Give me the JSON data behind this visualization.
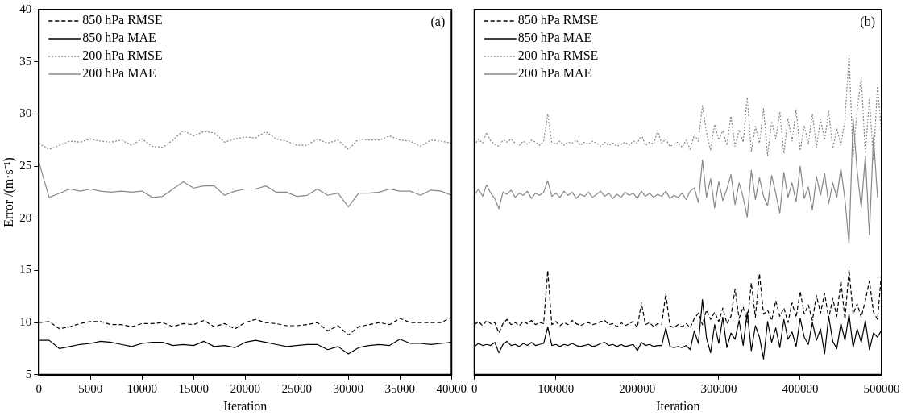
{
  "chart_data": [
    {
      "type": "line",
      "xlabel": "Iteration",
      "ylabel": "Error /(m·s⁻¹)",
      "annotations": [
        "(a)"
      ],
      "legend": "top left",
      "grid": false,
      "xlim": [
        0,
        40000
      ],
      "xticks": [
        0,
        5000,
        10000,
        15000,
        20000,
        25000,
        30000,
        35000,
        40000
      ],
      "ylim": [
        5,
        40
      ],
      "yticks": [
        5,
        10,
        15,
        20,
        25,
        30,
        35,
        40
      ],
      "x": [
        0,
        1000,
        2000,
        3000,
        4000,
        5000,
        6000,
        7000,
        8000,
        9000,
        10000,
        11000,
        12000,
        13000,
        14000,
        15000,
        16000,
        17000,
        18000,
        19000,
        20000,
        21000,
        22000,
        23000,
        24000,
        25000,
        26000,
        27000,
        28000,
        29000,
        30000,
        31000,
        32000,
        33000,
        34000,
        35000,
        36000,
        37000,
        38000,
        39000,
        40000
      ],
      "series": [
        {
          "name": "850 hPa RMSE",
          "color": "#000000",
          "line_style": "dashed",
          "values": [
            10.0,
            10.1,
            9.4,
            9.6,
            9.9,
            10.1,
            10.1,
            9.8,
            9.8,
            9.6,
            9.9,
            9.9,
            10.0,
            9.6,
            9.9,
            9.8,
            10.2,
            9.6,
            9.9,
            9.4,
            10.0,
            10.3,
            10.0,
            9.9,
            9.7,
            9.7,
            9.8,
            10.0,
            9.2,
            9.7,
            8.8,
            9.6,
            9.8,
            10.0,
            9.8,
            10.4,
            10.0,
            10.0,
            10.0,
            10.0,
            10.5
          ]
        },
        {
          "name": "850 hPa MAE",
          "color": "#000000",
          "line_style": "solid",
          "values": [
            8.3,
            8.3,
            7.5,
            7.7,
            7.9,
            8.0,
            8.2,
            8.1,
            7.9,
            7.7,
            8.0,
            8.1,
            8.1,
            7.8,
            7.9,
            7.8,
            8.2,
            7.7,
            7.8,
            7.6,
            8.1,
            8.3,
            8.1,
            7.9,
            7.7,
            7.8,
            7.9,
            7.9,
            7.4,
            7.7,
            7.0,
            7.6,
            7.8,
            7.9,
            7.8,
            8.4,
            8.0,
            8.0,
            7.9,
            8.0,
            8.1
          ]
        },
        {
          "name": "200 hPa RMSE",
          "color": "#888888",
          "line_style": "dotted",
          "values": [
            27.2,
            26.6,
            27.0,
            27.4,
            27.3,
            27.6,
            27.4,
            27.3,
            27.5,
            27.0,
            27.6,
            26.9,
            26.8,
            27.5,
            28.4,
            27.9,
            28.3,
            28.2,
            27.3,
            27.6,
            27.8,
            27.7,
            28.3,
            27.6,
            27.4,
            27.0,
            27.0,
            27.6,
            27.2,
            27.5,
            26.6,
            27.6,
            27.5,
            27.5,
            27.9,
            27.5,
            27.4,
            26.9,
            27.5,
            27.4,
            27.2
          ]
        },
        {
          "name": "200 hPa MAE",
          "color": "#888888",
          "line_style": "solid",
          "values": [
            25.4,
            22.0,
            22.4,
            22.8,
            22.6,
            22.8,
            22.6,
            22.5,
            22.6,
            22.5,
            22.6,
            22.0,
            22.1,
            22.8,
            23.5,
            22.9,
            23.1,
            23.1,
            22.2,
            22.6,
            22.8,
            22.8,
            23.1,
            22.5,
            22.5,
            22.1,
            22.2,
            22.8,
            22.2,
            22.4,
            21.1,
            22.4,
            22.4,
            22.5,
            22.8,
            22.6,
            22.6,
            22.2,
            22.7,
            22.6,
            22.2
          ]
        }
      ]
    },
    {
      "type": "line",
      "xlabel": "Iteration",
      "annotations": [
        "(b)"
      ],
      "legend": "top left",
      "grid": false,
      "tick_labels": "x",
      "xlim": [
        0,
        500000
      ],
      "xticks": [
        0,
        100000,
        200000,
        300000,
        400000,
        500000
      ],
      "ylim": [
        5,
        40
      ],
      "yticks": [
        5,
        10,
        15,
        20,
        25,
        30,
        35,
        40
      ],
      "x": [
        0,
        5000,
        10000,
        15000,
        20000,
        25000,
        30000,
        35000,
        40000,
        45000,
        50000,
        55000,
        60000,
        65000,
        70000,
        75000,
        80000,
        85000,
        90000,
        95000,
        100000,
        105000,
        110000,
        115000,
        120000,
        125000,
        130000,
        135000,
        140000,
        145000,
        150000,
        155000,
        160000,
        165000,
        170000,
        175000,
        180000,
        185000,
        190000,
        195000,
        200000,
        205000,
        210000,
        215000,
        220000,
        225000,
        230000,
        235000,
        240000,
        245000,
        250000,
        255000,
        260000,
        265000,
        270000,
        275000,
        280000,
        285000,
        290000,
        295000,
        300000,
        305000,
        310000,
        315000,
        320000,
        325000,
        330000,
        335000,
        340000,
        345000,
        350000,
        355000,
        360000,
        365000,
        370000,
        375000,
        380000,
        385000,
        390000,
        395000,
        400000,
        405000,
        410000,
        415000,
        420000,
        425000,
        430000,
        435000,
        440000,
        445000,
        450000,
        455000,
        460000,
        465000,
        470000,
        475000,
        480000,
        485000,
        490000,
        495000,
        500000
      ],
      "series": [
        {
          "name": "850 hPa RMSE",
          "color": "#000000",
          "line_style": "dashed",
          "values": [
            9.8,
            10.1,
            9.7,
            10.2,
            9.9,
            10.0,
            9.0,
            9.9,
            10.3,
            9.8,
            10.0,
            9.7,
            10.1,
            9.9,
            10.2,
            9.8,
            10.0,
            9.9,
            15.0,
            9.8,
            10.1,
            9.7,
            10.0,
            9.8,
            10.2,
            9.9,
            9.7,
            9.9,
            10.0,
            9.8,
            9.9,
            10.1,
            10.2,
            9.8,
            9.9,
            9.6,
            10.0,
            9.7,
            9.9,
            10.1,
            9.5,
            11.9,
            9.8,
            10.0,
            9.6,
            9.9,
            9.8,
            12.8,
            9.7,
            9.5,
            9.8,
            9.6,
            9.9,
            9.5,
            10.4,
            10.9,
            9.8,
            11.2,
            10.3,
            11.0,
            10.1,
            11.4,
            9.9,
            10.6,
            13.2,
            10.4,
            11.5,
            10.0,
            13.8,
            10.5,
            14.7,
            10.8,
            11.2,
            10.2,
            12.1,
            10.6,
            11.4,
            10.0,
            11.9,
            10.5,
            13.0,
            10.8,
            11.7,
            10.2,
            12.6,
            10.9,
            12.8,
            10.4,
            12.3,
            10.6,
            14.0,
            10.3,
            15.1,
            10.8,
            11.8,
            10.5,
            12.1,
            14.0,
            11.0,
            10.3,
            14.9
          ]
        },
        {
          "name": "850 hPa MAE",
          "color": "#000000",
          "line_style": "solid",
          "values": [
            7.7,
            8.0,
            7.8,
            7.9,
            7.8,
            8.1,
            7.1,
            7.9,
            8.2,
            7.8,
            7.9,
            7.7,
            8.0,
            7.8,
            8.1,
            7.8,
            7.9,
            8.0,
            9.6,
            7.8,
            7.9,
            7.7,
            7.9,
            7.8,
            8.0,
            7.8,
            7.7,
            7.8,
            7.9,
            7.7,
            7.8,
            8.0,
            8.1,
            7.8,
            7.9,
            7.7,
            7.9,
            7.7,
            7.8,
            7.9,
            7.3,
            8.1,
            7.8,
            7.9,
            7.7,
            7.8,
            7.8,
            9.5,
            7.7,
            7.6,
            7.7,
            7.6,
            7.8,
            7.4,
            9.2,
            8.0,
            12.2,
            8.5,
            7.1,
            9.8,
            8.0,
            10.5,
            7.6,
            9.0,
            8.4,
            10.2,
            7.8,
            11.0,
            7.3,
            9.7,
            8.6,
            6.5,
            10.1,
            8.1,
            9.5,
            7.6,
            10.3,
            8.4,
            9.1,
            7.7,
            10.4,
            8.6,
            7.9,
            10.0,
            8.3,
            9.4,
            7.0,
            10.6,
            8.2,
            7.5,
            9.9,
            8.3,
            10.8,
            7.6,
            9.4,
            8.1,
            10.2,
            7.4,
            9.0,
            8.6,
            9.3
          ]
        },
        {
          "name": "200 hPa RMSE",
          "color": "#888888",
          "line_style": "dotted",
          "values": [
            27.0,
            27.6,
            27.2,
            28.2,
            27.4,
            27.1,
            26.9,
            27.5,
            27.3,
            27.6,
            27.2,
            27.0,
            27.4,
            27.1,
            27.5,
            27.3,
            27.0,
            27.4,
            30.0,
            27.3,
            27.1,
            27.4,
            27.0,
            27.3,
            27.2,
            27.5,
            27.0,
            27.3,
            27.1,
            27.4,
            27.2,
            26.9,
            27.3,
            27.0,
            27.2,
            26.9,
            27.1,
            27.3,
            27.0,
            27.4,
            27.2,
            28.0,
            27.0,
            27.3,
            27.1,
            28.4,
            27.2,
            27.6,
            26.9,
            27.1,
            27.3,
            26.8,
            27.5,
            26.6,
            28.0,
            27.4,
            30.8,
            28.2,
            26.5,
            29.0,
            27.5,
            28.4,
            27.0,
            29.8,
            26.9,
            28.5,
            27.3,
            31.6,
            26.4,
            28.8,
            27.2,
            30.5,
            26.0,
            29.3,
            27.6,
            30.2,
            26.2,
            29.6,
            27.4,
            30.4,
            26.5,
            28.9,
            27.1,
            30.0,
            26.8,
            29.5,
            27.5,
            30.3,
            26.7,
            28.6,
            27.0,
            29.4,
            35.6,
            25.8,
            30.4,
            33.5,
            26.2,
            31.5,
            25.6,
            32.8,
            27.8
          ]
        },
        {
          "name": "200 hPa MAE",
          "color": "#888888",
          "line_style": "solid",
          "values": [
            22.2,
            22.8,
            22.1,
            23.2,
            22.4,
            21.9,
            20.9,
            22.5,
            22.3,
            22.7,
            22.0,
            22.4,
            22.2,
            22.6,
            21.9,
            22.4,
            22.2,
            22.5,
            23.6,
            22.1,
            22.4,
            22.0,
            22.6,
            22.2,
            22.5,
            21.9,
            22.3,
            22.1,
            22.5,
            22.0,
            22.3,
            22.6,
            22.1,
            22.4,
            21.9,
            22.3,
            22.0,
            22.5,
            22.2,
            22.4,
            21.9,
            22.6,
            22.1,
            22.4,
            22.0,
            22.3,
            22.1,
            22.6,
            21.9,
            22.2,
            22.0,
            22.4,
            21.8,
            22.6,
            22.9,
            21.5,
            25.6,
            22.0,
            23.8,
            21.0,
            23.5,
            21.7,
            22.8,
            24.2,
            21.3,
            23.4,
            22.0,
            20.1,
            24.6,
            21.8,
            23.9,
            22.1,
            21.2,
            24.1,
            22.4,
            20.5,
            24.4,
            22.0,
            23.4,
            21.6,
            25.0,
            21.9,
            23.0,
            20.8,
            24.0,
            22.2,
            24.3,
            21.4,
            23.4,
            22.0,
            24.8,
            21.8,
            17.5,
            29.6,
            24.5,
            21.0,
            26.0,
            18.4,
            27.8,
            22.0,
            null
          ]
        }
      ]
    }
  ]
}
